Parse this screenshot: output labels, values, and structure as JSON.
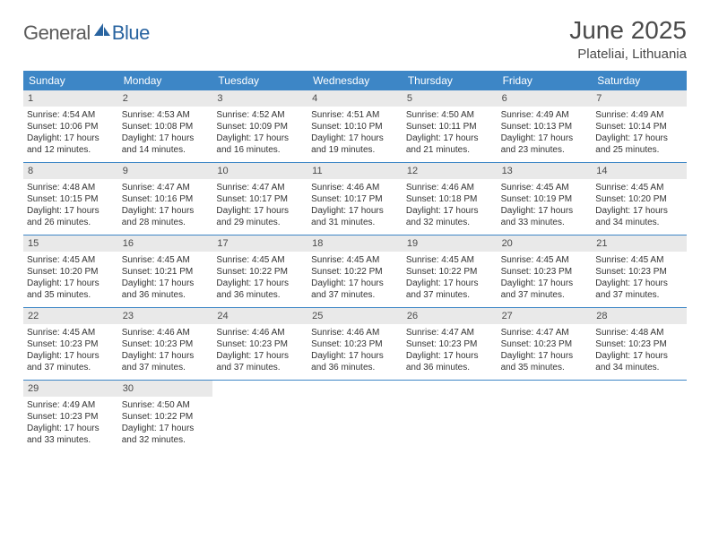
{
  "logo": {
    "text1": "General",
    "text2": "Blue"
  },
  "title": "June 2025",
  "location": "Plateliai, Lithuania",
  "styling": {
    "page_bg": "#ffffff",
    "header_bg": "#3d86c6",
    "header_text": "#ffffff",
    "daynum_bg": "#e9e9e9",
    "text_color": "#333333",
    "rule_color": "#3d86c6",
    "weekday_fontsize": 12,
    "daynum_fontsize": 11,
    "body_fontsize": 10
  },
  "weekdays": [
    "Sunday",
    "Monday",
    "Tuesday",
    "Wednesday",
    "Thursday",
    "Friday",
    "Saturday"
  ],
  "days": [
    {
      "n": "1",
      "sunrise": "4:54 AM",
      "sunset": "10:06 PM",
      "daylight": "17 hours and 12 minutes."
    },
    {
      "n": "2",
      "sunrise": "4:53 AM",
      "sunset": "10:08 PM",
      "daylight": "17 hours and 14 minutes."
    },
    {
      "n": "3",
      "sunrise": "4:52 AM",
      "sunset": "10:09 PM",
      "daylight": "17 hours and 16 minutes."
    },
    {
      "n": "4",
      "sunrise": "4:51 AM",
      "sunset": "10:10 PM",
      "daylight": "17 hours and 19 minutes."
    },
    {
      "n": "5",
      "sunrise": "4:50 AM",
      "sunset": "10:11 PM",
      "daylight": "17 hours and 21 minutes."
    },
    {
      "n": "6",
      "sunrise": "4:49 AM",
      "sunset": "10:13 PM",
      "daylight": "17 hours and 23 minutes."
    },
    {
      "n": "7",
      "sunrise": "4:49 AM",
      "sunset": "10:14 PM",
      "daylight": "17 hours and 25 minutes."
    },
    {
      "n": "8",
      "sunrise": "4:48 AM",
      "sunset": "10:15 PM",
      "daylight": "17 hours and 26 minutes."
    },
    {
      "n": "9",
      "sunrise": "4:47 AM",
      "sunset": "10:16 PM",
      "daylight": "17 hours and 28 minutes."
    },
    {
      "n": "10",
      "sunrise": "4:47 AM",
      "sunset": "10:17 PM",
      "daylight": "17 hours and 29 minutes."
    },
    {
      "n": "11",
      "sunrise": "4:46 AM",
      "sunset": "10:17 PM",
      "daylight": "17 hours and 31 minutes."
    },
    {
      "n": "12",
      "sunrise": "4:46 AM",
      "sunset": "10:18 PM",
      "daylight": "17 hours and 32 minutes."
    },
    {
      "n": "13",
      "sunrise": "4:45 AM",
      "sunset": "10:19 PM",
      "daylight": "17 hours and 33 minutes."
    },
    {
      "n": "14",
      "sunrise": "4:45 AM",
      "sunset": "10:20 PM",
      "daylight": "17 hours and 34 minutes."
    },
    {
      "n": "15",
      "sunrise": "4:45 AM",
      "sunset": "10:20 PM",
      "daylight": "17 hours and 35 minutes."
    },
    {
      "n": "16",
      "sunrise": "4:45 AM",
      "sunset": "10:21 PM",
      "daylight": "17 hours and 36 minutes."
    },
    {
      "n": "17",
      "sunrise": "4:45 AM",
      "sunset": "10:22 PM",
      "daylight": "17 hours and 36 minutes."
    },
    {
      "n": "18",
      "sunrise": "4:45 AM",
      "sunset": "10:22 PM",
      "daylight": "17 hours and 37 minutes."
    },
    {
      "n": "19",
      "sunrise": "4:45 AM",
      "sunset": "10:22 PM",
      "daylight": "17 hours and 37 minutes."
    },
    {
      "n": "20",
      "sunrise": "4:45 AM",
      "sunset": "10:23 PM",
      "daylight": "17 hours and 37 minutes."
    },
    {
      "n": "21",
      "sunrise": "4:45 AM",
      "sunset": "10:23 PM",
      "daylight": "17 hours and 37 minutes."
    },
    {
      "n": "22",
      "sunrise": "4:45 AM",
      "sunset": "10:23 PM",
      "daylight": "17 hours and 37 minutes."
    },
    {
      "n": "23",
      "sunrise": "4:46 AM",
      "sunset": "10:23 PM",
      "daylight": "17 hours and 37 minutes."
    },
    {
      "n": "24",
      "sunrise": "4:46 AM",
      "sunset": "10:23 PM",
      "daylight": "17 hours and 37 minutes."
    },
    {
      "n": "25",
      "sunrise": "4:46 AM",
      "sunset": "10:23 PM",
      "daylight": "17 hours and 36 minutes."
    },
    {
      "n": "26",
      "sunrise": "4:47 AM",
      "sunset": "10:23 PM",
      "daylight": "17 hours and 36 minutes."
    },
    {
      "n": "27",
      "sunrise": "4:47 AM",
      "sunset": "10:23 PM",
      "daylight": "17 hours and 35 minutes."
    },
    {
      "n": "28",
      "sunrise": "4:48 AM",
      "sunset": "10:23 PM",
      "daylight": "17 hours and 34 minutes."
    },
    {
      "n": "29",
      "sunrise": "4:49 AM",
      "sunset": "10:23 PM",
      "daylight": "17 hours and 33 minutes."
    },
    {
      "n": "30",
      "sunrise": "4:50 AM",
      "sunset": "10:22 PM",
      "daylight": "17 hours and 32 minutes."
    }
  ],
  "labels": {
    "sunrise_prefix": "Sunrise: ",
    "sunset_prefix": "Sunset: ",
    "daylight_prefix": "Daylight: "
  },
  "grid": {
    "start_weekday_index": 0,
    "total_cells": 35
  }
}
